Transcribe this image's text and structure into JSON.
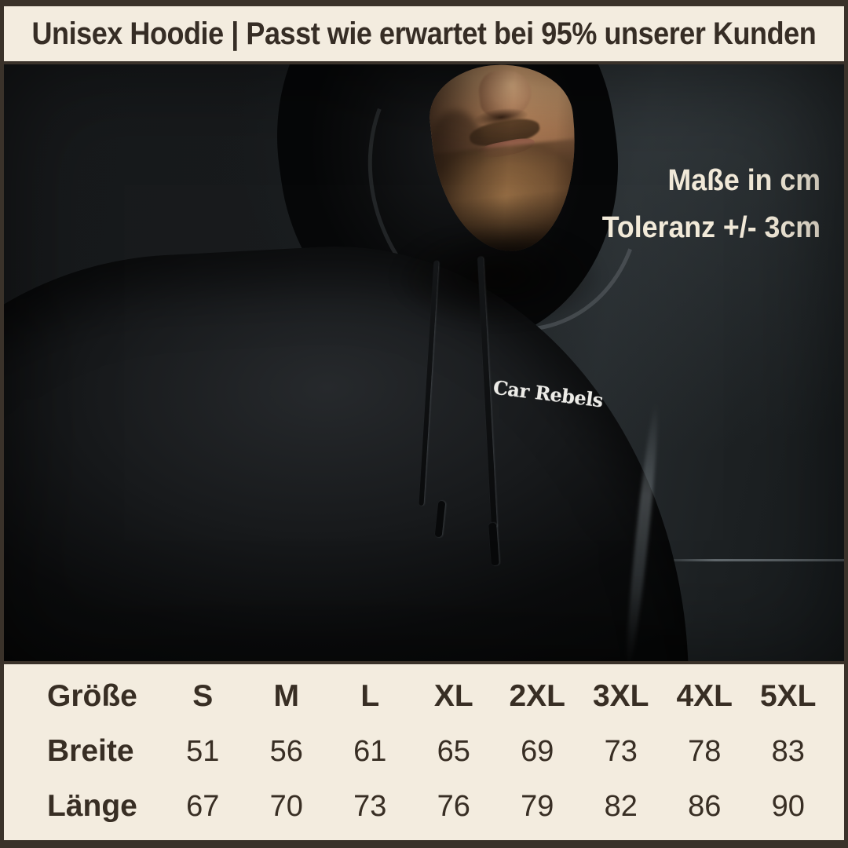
{
  "banner": {
    "title": "Unisex Hoodie | Passt wie erwartet bei 95% unserer Kunden"
  },
  "photo": {
    "measure_line1": "Maße in cm",
    "measure_line2": "Toleranz +/- 3cm",
    "chest_logo_text": "Car Rebels"
  },
  "chart_data": {
    "type": "table",
    "columns": [
      "Größe",
      "S",
      "M",
      "L",
      "XL",
      "2XL",
      "3XL",
      "4XL",
      "5XL"
    ],
    "rows": [
      [
        "Breite",
        "51",
        "56",
        "61",
        "65",
        "69",
        "73",
        "78",
        "83"
      ],
      [
        "Länge",
        "67",
        "70",
        "73",
        "76",
        "79",
        "82",
        "86",
        "90"
      ]
    ],
    "units": "cm",
    "tolerance": "+/- 3cm"
  },
  "colors": {
    "frame": "#3a322a",
    "panel_bg": "#f3ecdf",
    "panel_text": "#382e24",
    "overlay_text": "#f2ead9",
    "logo_text": "#ecebe7",
    "photo_bg": "#1b1e20"
  }
}
